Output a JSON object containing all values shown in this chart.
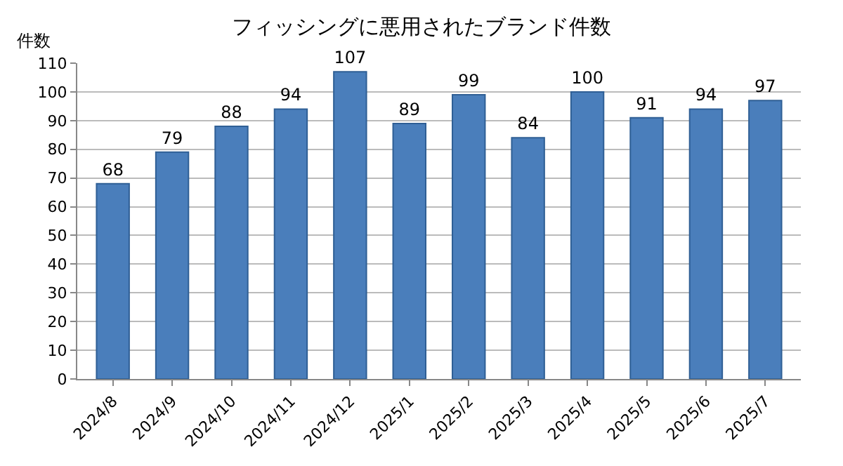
{
  "chart_data": {
    "type": "bar",
    "title": "フィッシングに悪用されたブランド件数",
    "ylabel": "件数",
    "categories": [
      "2024/8",
      "2024/9",
      "2024/10",
      "2024/11",
      "2024/12",
      "2025/1",
      "2025/2",
      "2025/3",
      "2025/4",
      "2025/5",
      "2025/6",
      "2025/7"
    ],
    "values": [
      68,
      79,
      88,
      94,
      107,
      89,
      99,
      84,
      100,
      91,
      94,
      97
    ],
    "color": "#4a7ebb",
    "ylim": [
      0,
      110
    ],
    "yticks": [
      0,
      10,
      20,
      30,
      40,
      50,
      60,
      70,
      80,
      90,
      100,
      110
    ],
    "grid": "y",
    "data_labels": true
  }
}
